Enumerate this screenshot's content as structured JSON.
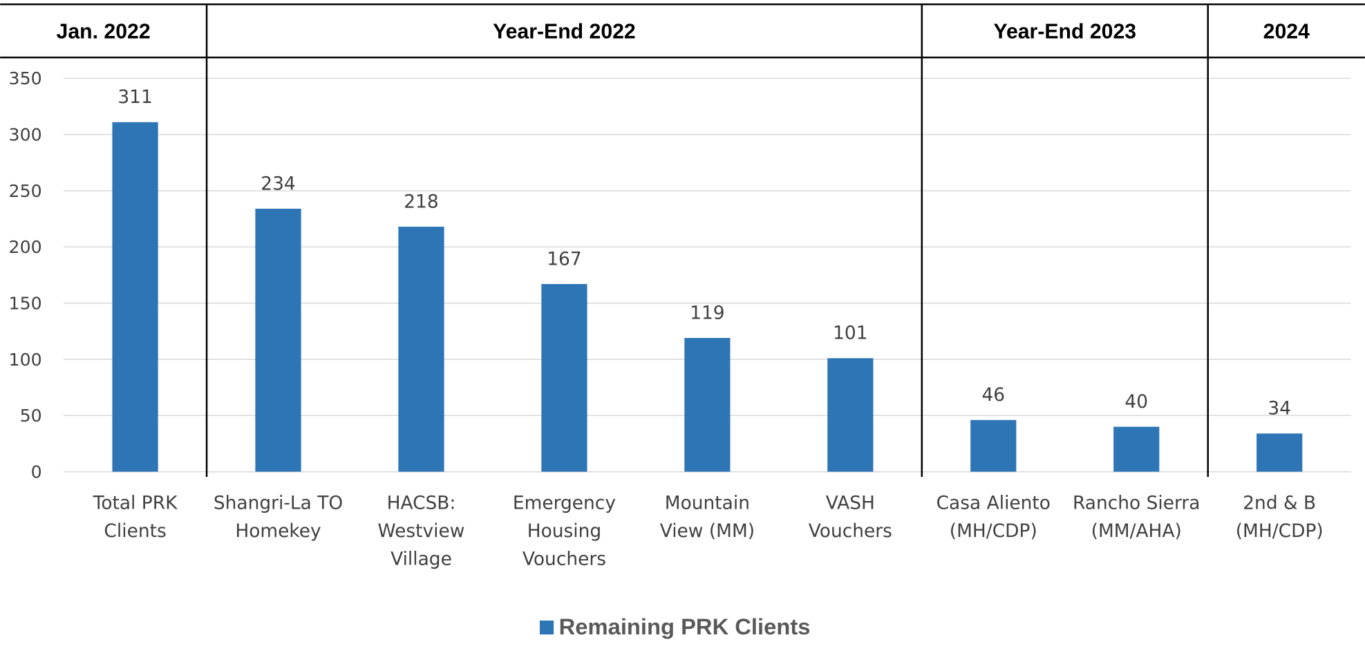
{
  "chart_data": {
    "type": "bar",
    "color": "#2e75b6",
    "ylim": [
      0,
      350
    ],
    "yticks": [
      0,
      50,
      100,
      150,
      200,
      250,
      300,
      350
    ],
    "grid": true,
    "legend": {
      "label": "Remaining PRK Clients"
    },
    "groups": [
      {
        "label": "Jan. 2022",
        "categories": [
          "Total PRK Clients"
        ],
        "values": [
          311
        ]
      },
      {
        "label": "Year-End 2022",
        "categories": [
          "Shangri-La TO Homekey",
          "HACSB: Westview Village",
          "Emergency Housing Vouchers",
          "Mountain View (MM)",
          "VASH Vouchers"
        ],
        "values": [
          234,
          218,
          167,
          119,
          101
        ]
      },
      {
        "label": "Year-End 2023",
        "categories": [
          "Casa Aliento (MH/CDP)",
          "Rancho Sierra (MM/AHA)"
        ],
        "values": [
          46,
          40
        ]
      },
      {
        "label": "2024",
        "categories": [
          "2nd & B (MH/CDP)"
        ],
        "values": [
          34
        ]
      }
    ]
  }
}
